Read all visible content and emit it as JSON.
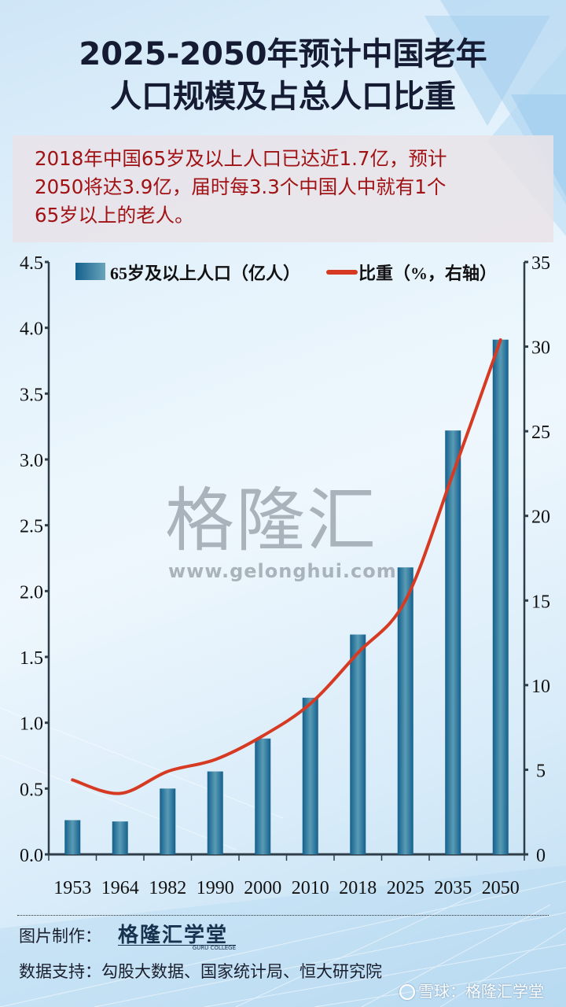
{
  "header": {
    "title_line1": "2025-2050年预计中国老年",
    "title_line2": "人口规模及占总人口比重"
  },
  "summary": {
    "line1": "2018年中国65岁及以上人口已达近1.7亿，预计",
    "line2": "2050将达3.9亿，届时每3.3个中国人中就有1个",
    "line3": "65岁以上的老人。"
  },
  "legend": {
    "bar_label": "65岁及以上人口（亿人）",
    "line_label": "比重（%，右轴）"
  },
  "watermark": {
    "text": "格隆汇",
    "url": "www.gelonghui.com"
  },
  "footer": {
    "made_by_label": "图片制作：",
    "brand_cn": "格隆汇学堂",
    "brand_en": "GURU COLLEGE",
    "data_source": "数据支持：勾股大数据、国家统计局、恒大研究院",
    "xueqiu": "雪球：格隆汇学堂"
  },
  "colors": {
    "bar": "#1d6a95",
    "line": "#d63a22",
    "title": "#141b33",
    "summary_text": "#a01214",
    "axis": "#2f3d48"
  },
  "chart_data": {
    "type": "bar",
    "title": "2025-2050年预计中国老年人口规模及占总人口比重",
    "categories": [
      "1953",
      "1964",
      "1982",
      "1990",
      "2000",
      "2010",
      "2018",
      "2025",
      "2035",
      "2050"
    ],
    "series": [
      {
        "name": "65岁及以上人口（亿人）",
        "type": "bar",
        "axis": "left",
        "values": [
          0.26,
          0.25,
          0.5,
          0.63,
          0.88,
          1.19,
          1.67,
          2.18,
          3.22,
          3.91
        ]
      },
      {
        "name": "比重（%，右轴）",
        "type": "line",
        "axis": "right",
        "values": [
          4.4,
          3.6,
          4.9,
          5.6,
          7.0,
          8.9,
          11.9,
          15.0,
          22.5,
          30.4
        ]
      }
    ],
    "xlabel": "",
    "ylabel": "",
    "ylim": [
      0,
      4.5
    ],
    "y_ticks": [
      "0.0",
      "0.5",
      "1.0",
      "1.5",
      "2.0",
      "2.5",
      "3.0",
      "3.5",
      "4.0",
      "4.5"
    ],
    "y2lim": [
      0,
      35
    ],
    "y2_ticks": [
      "0",
      "5",
      "10",
      "15",
      "20",
      "25",
      "30",
      "35"
    ],
    "grid": false,
    "legend_position": "top"
  }
}
